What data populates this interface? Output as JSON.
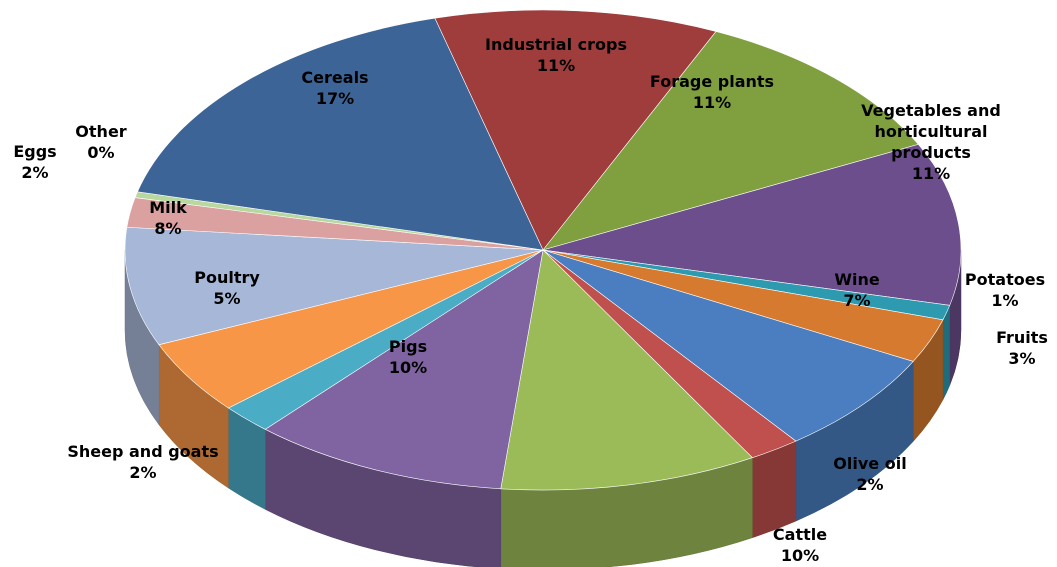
{
  "chart_data": {
    "type": "pie3d",
    "categories": [
      "Industrial  crops",
      "Forage plants",
      "Vegetables and horticultural products",
      "Potatoes",
      "Fruits",
      "Wine",
      "Olive oil",
      "Cattle",
      "Pigs",
      "Sheep and goats",
      "Poultry",
      "Milk",
      "Eggs",
      "Other",
      "Cereals"
    ],
    "values": [
      11,
      11,
      11,
      1,
      3,
      7,
      2,
      10,
      10,
      2,
      5,
      8,
      2,
      0.4,
      17
    ],
    "value_labels": [
      "11%",
      "11%",
      "11%",
      "1%",
      "3%",
      "7%",
      "2%",
      "10%",
      "10%",
      "2%",
      "5%",
      "8%",
      "2%",
      "0%",
      "17%"
    ],
    "colors": [
      "#9e3d3c",
      "#80a040",
      "#6c4e8c",
      "#2e9ab0",
      "#d57a2e",
      "#4a7ec0",
      "#c0504d",
      "#9bbb59",
      "#8064a2",
      "#4bacc6",
      "#f79646",
      "#a7b7d8",
      "#dba0a0",
      "#b8d8a0",
      "#3c6496"
    ]
  }
}
